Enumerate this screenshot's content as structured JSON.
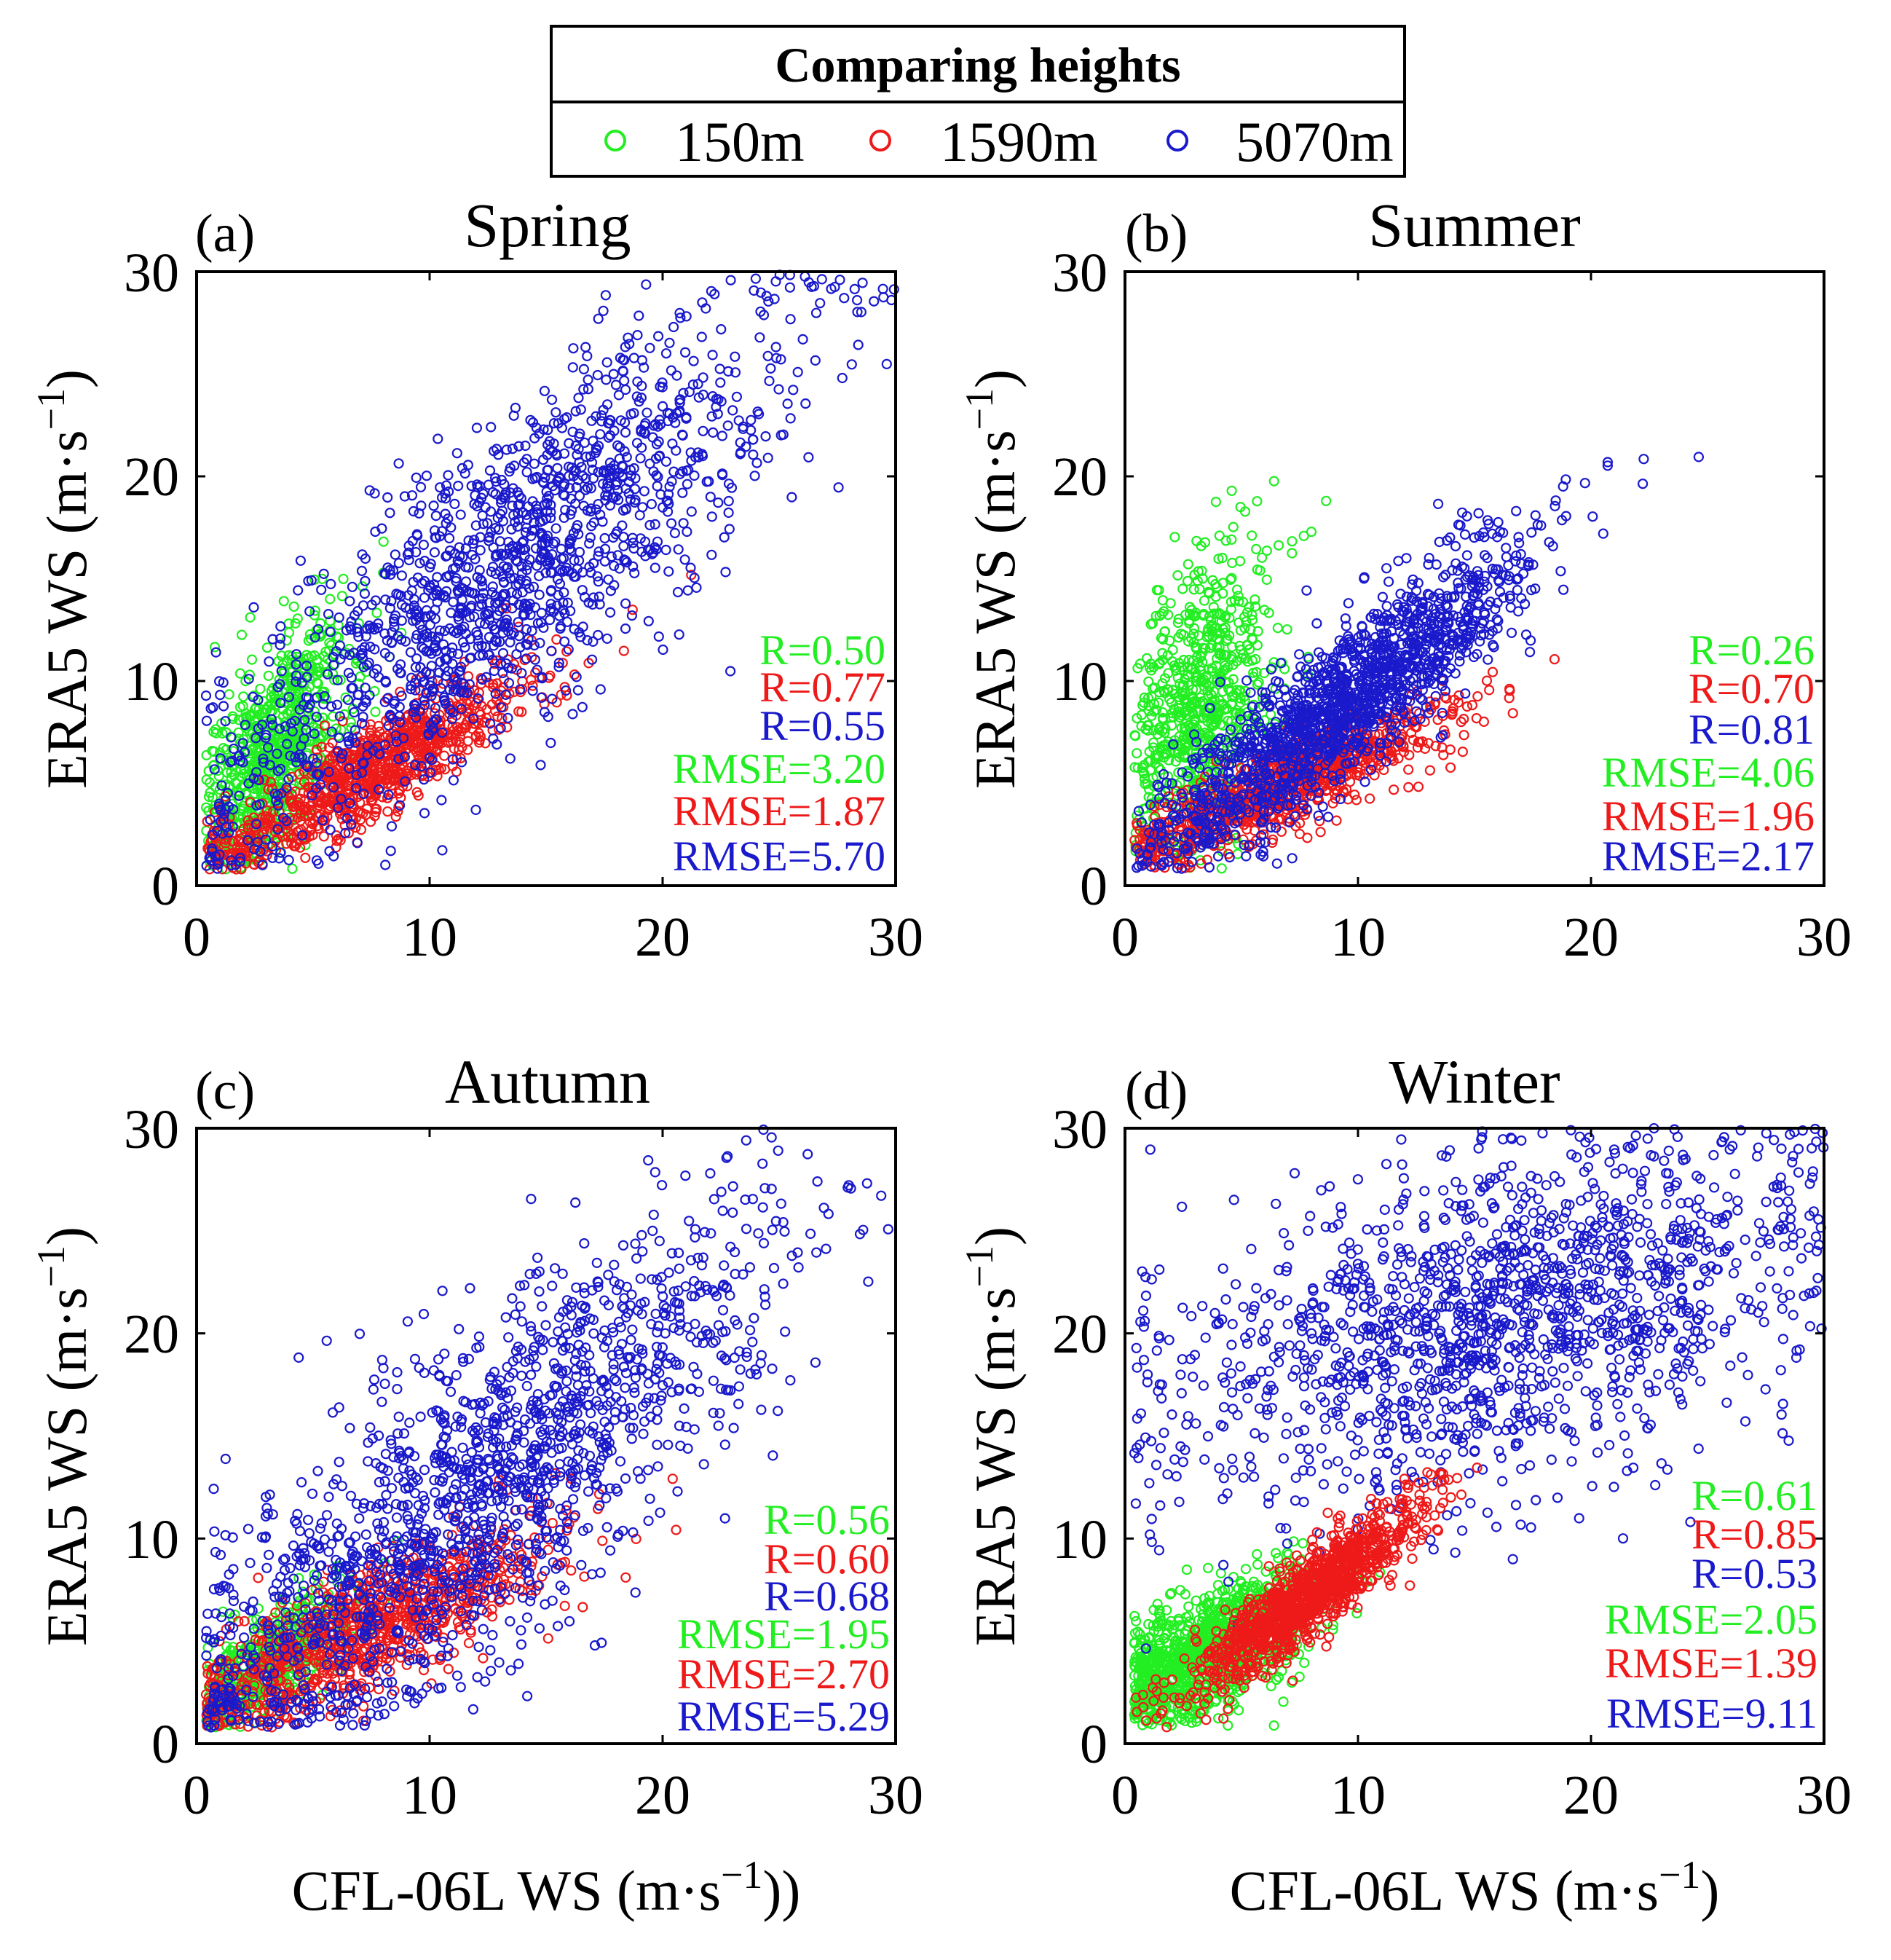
{
  "legend": {
    "title": "Comparing heights",
    "entries": [
      {
        "label": "150m",
        "color": "#22ee22"
      },
      {
        "label": "1590m",
        "color": "#ee1a1a"
      },
      {
        "label": "5070m",
        "color": "#1a1acc"
      }
    ]
  },
  "x_axis_label": {
    "main": "CFL-06L WS (m·s",
    "exp": "−1",
    "end_left": "))",
    "end_right": ")"
  },
  "y_axis_label": {
    "main": "ERA5 WS (m·s",
    "exp": "−1",
    "end": ")"
  },
  "chart_data": [
    {
      "type": "scatter",
      "letter": "(a)",
      "title": "Spring",
      "xlim": [
        0,
        30
      ],
      "ylim": [
        0,
        30
      ],
      "xticks": [
        "0",
        "10",
        "20",
        "30"
      ],
      "yticks": [
        "0",
        "10",
        "20",
        "30"
      ],
      "series": [
        {
          "name": "150m",
          "n": 700,
          "xmean": 3.2,
          "xsd": 1.6,
          "slope": 1.1,
          "intercept": 3.0,
          "noise": 2.6
        },
        {
          "name": "1590m",
          "n": 900,
          "xmean": 7.5,
          "xsd": 3.5,
          "slope": 0.65,
          "intercept": 0.8,
          "noise": 1.2
        },
        {
          "name": "5070m",
          "n": 1500,
          "xmean": 13.0,
          "xsd": 6.0,
          "slope": 0.85,
          "intercept": 4.0,
          "noise": 3.8
        }
      ],
      "stats": [
        "R=0.50",
        "R=0.77",
        "R=0.55",
        "RMSE=3.20",
        "RMSE=1.87",
        "RMSE=5.70"
      ]
    },
    {
      "type": "scatter",
      "letter": "(b)",
      "title": "Summer",
      "xlim": [
        0,
        30
      ],
      "ylim": [
        0,
        30
      ],
      "xticks": [
        "0",
        "10",
        "20",
        "30"
      ],
      "yticks": [
        "0",
        "10",
        "20",
        "30"
      ],
      "series": [
        {
          "name": "150m",
          "n": 700,
          "xmean": 3.2,
          "xsd": 1.6,
          "slope": 0.9,
          "intercept": 6.0,
          "noise": 3.5
        },
        {
          "name": "1590m",
          "n": 900,
          "xmean": 7.0,
          "xsd": 3.5,
          "slope": 0.5,
          "intercept": 1.5,
          "noise": 1.0
        },
        {
          "name": "5070m",
          "n": 1500,
          "xmean": 9.5,
          "xsd": 4.0,
          "slope": 0.85,
          "intercept": 1.0,
          "noise": 1.8
        }
      ],
      "stats": [
        "R=0.26",
        "R=0.70",
        "R=0.81",
        "RMSE=4.06",
        "RMSE=1.96",
        "RMSE=2.17"
      ]
    },
    {
      "type": "scatter",
      "letter": "(c)",
      "title": "Autumn",
      "xlim": [
        0,
        30
      ],
      "ylim": [
        0,
        30
      ],
      "xticks": [
        "0",
        "10",
        "20",
        "30"
      ],
      "yticks": [
        "0",
        "10",
        "20",
        "30"
      ],
      "series": [
        {
          "name": "150m",
          "n": 500,
          "xmean": 3.0,
          "xsd": 1.6,
          "slope": 0.8,
          "intercept": 1.5,
          "noise": 1.2
        },
        {
          "name": "1590m",
          "n": 900,
          "xmean": 7.5,
          "xsd": 4.0,
          "slope": 0.55,
          "intercept": 1.5,
          "noise": 1.5
        },
        {
          "name": "5070m",
          "n": 1600,
          "xmean": 12.0,
          "xsd": 6.5,
          "slope": 0.85,
          "intercept": 2.0,
          "noise": 4.0
        }
      ],
      "stats": [
        "R=0.56",
        "R=0.60",
        "R=0.68",
        "RMSE=1.95",
        "RMSE=2.70",
        "RMSE=5.29"
      ]
    },
    {
      "type": "scatter",
      "letter": "(d)",
      "title": "Winter",
      "xlim": [
        0,
        30
      ],
      "ylim": [
        0,
        30
      ],
      "xticks": [
        "0",
        "10",
        "20",
        "30"
      ],
      "yticks": [
        "0",
        "10",
        "20",
        "30"
      ],
      "series": [
        {
          "name": "150m",
          "n": 1100,
          "xmean": 3.5,
          "xsd": 2.2,
          "slope": 0.55,
          "intercept": 2.5,
          "noise": 1.4
        },
        {
          "name": "5070m",
          "n": 1500,
          "xmean": 16.0,
          "xsd": 7.0,
          "slope": 0.3,
          "intercept": 16.0,
          "noise": 4.0
        },
        {
          "name": "1590m",
          "n": 1100,
          "xmean": 8.0,
          "xsd": 2.5,
          "slope": 0.85,
          "intercept": 0.5,
          "noise": 1.0
        }
      ],
      "stats": [
        "R=0.61",
        "R=0.85",
        "R=0.53",
        "RMSE=2.05",
        "RMSE=1.39",
        "RMSE=9.11"
      ]
    }
  ]
}
